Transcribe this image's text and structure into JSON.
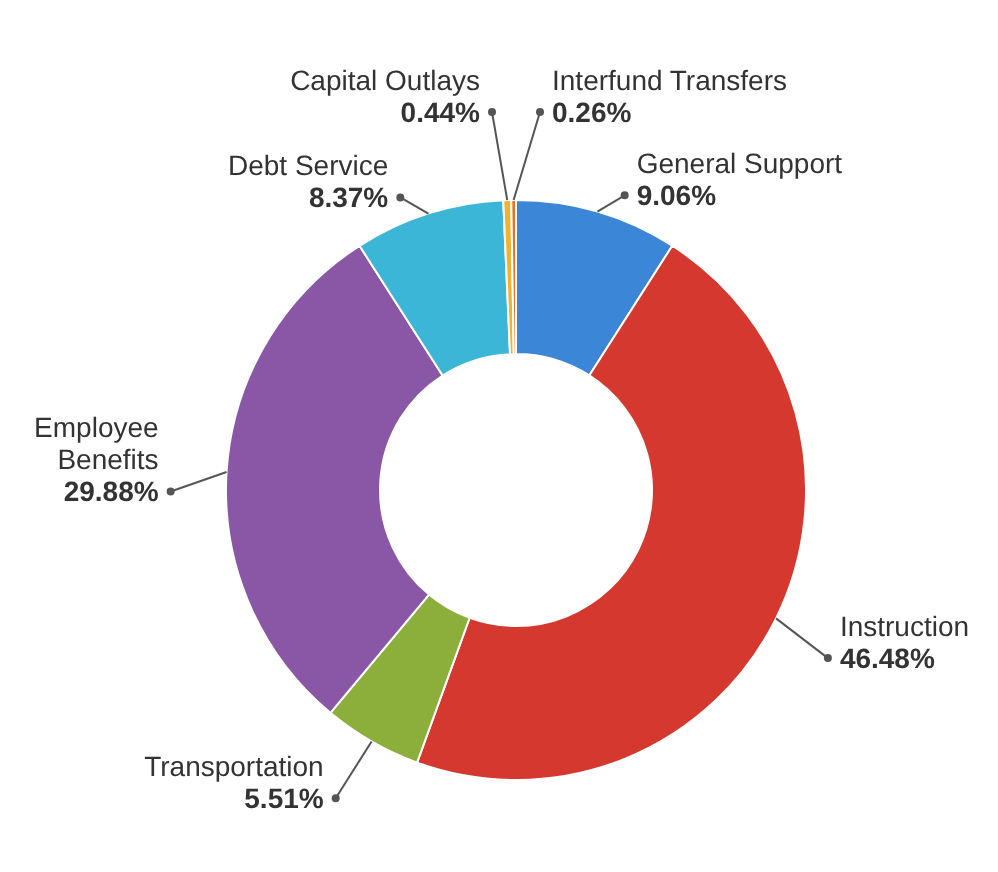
{
  "chart_data": {
    "type": "donut",
    "categories": [
      "General Support",
      "Instruction",
      "Transportation",
      "Employee Benefits",
      "Debt Service",
      "Capital Outlays",
      "Interfund Transfers"
    ],
    "values": [
      9.06,
      46.48,
      5.51,
      29.88,
      8.37,
      0.44,
      0.26
    ],
    "value_labels": [
      "9.06%",
      "46.48%",
      "5.51%",
      "29.88%",
      "8.37%",
      "0.44%",
      "0.26%"
    ],
    "colors": [
      "#3b86d6",
      "#d4382e",
      "#8cae3a",
      "#8a56a6",
      "#3cb6d6",
      "#f0b230",
      "#e8701e"
    ]
  }
}
